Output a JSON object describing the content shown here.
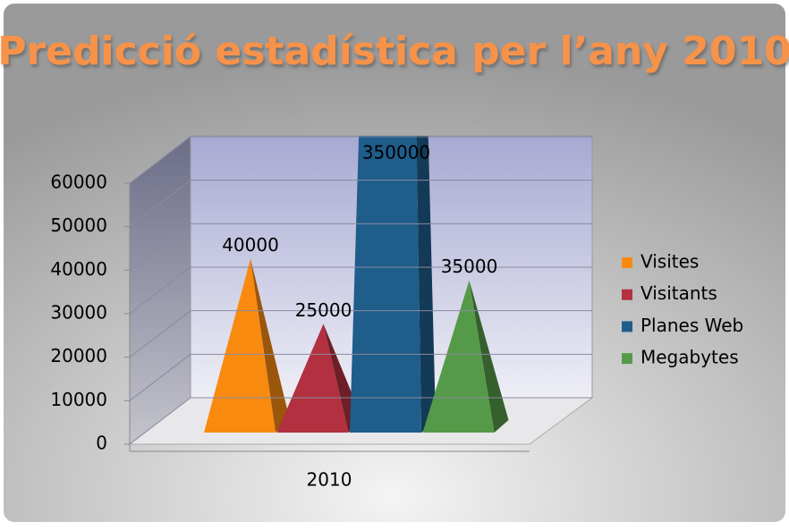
{
  "chart_data": {
    "type": "pyramid3d",
    "title": "Predicció estadística per l’any 2010",
    "categories": [
      "2010"
    ],
    "series": [
      {
        "name": "Visites",
        "color": "#f98a10",
        "values": [
          40000
        ]
      },
      {
        "name": "Visitants",
        "color": "#b2303f",
        "values": [
          25000
        ]
      },
      {
        "name": "Planes Web",
        "color": "#1f5d8a",
        "values": [
          350000
        ]
      },
      {
        "name": "Megabytes",
        "color": "#559a48",
        "values": [
          35000
        ]
      }
    ],
    "ylim": [
      0,
      60000
    ],
    "yticks": [
      0,
      10000,
      20000,
      30000,
      40000,
      50000,
      60000
    ],
    "grid": true,
    "legend": "right"
  }
}
